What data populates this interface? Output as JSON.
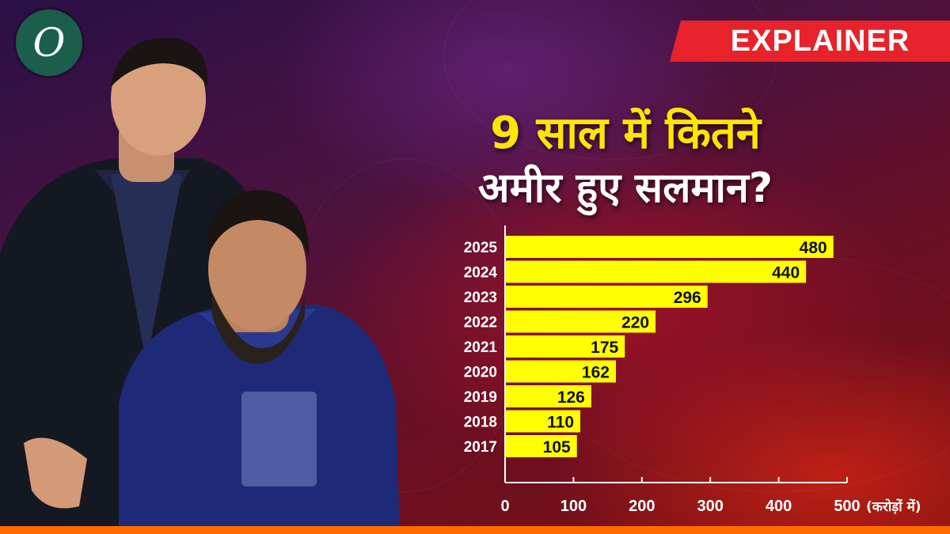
{
  "brand": {
    "logo_letter": "O"
  },
  "tag": {
    "label": "EXPLAINER"
  },
  "headline": {
    "line1": "9 साल में कितने",
    "line2": "अमीर हुए सलमान?"
  },
  "colors": {
    "bar": "#ffff00",
    "title": "#ffe600",
    "tag": "#e8222a",
    "accent_strip": "#ff6a00"
  },
  "chart_data": {
    "type": "bar",
    "orientation": "horizontal",
    "categories": [
      "2025",
      "2024",
      "2023",
      "2022",
      "2021",
      "2020",
      "2019",
      "2018",
      "2017"
    ],
    "values": [
      480,
      440,
      296,
      220,
      175,
      162,
      126,
      110,
      105
    ],
    "xlim": [
      0,
      500
    ],
    "xticks": [
      0,
      100,
      200,
      300,
      400,
      500
    ],
    "xunit": "(करोड़ों में)",
    "grid": false,
    "data_labels": true
  }
}
